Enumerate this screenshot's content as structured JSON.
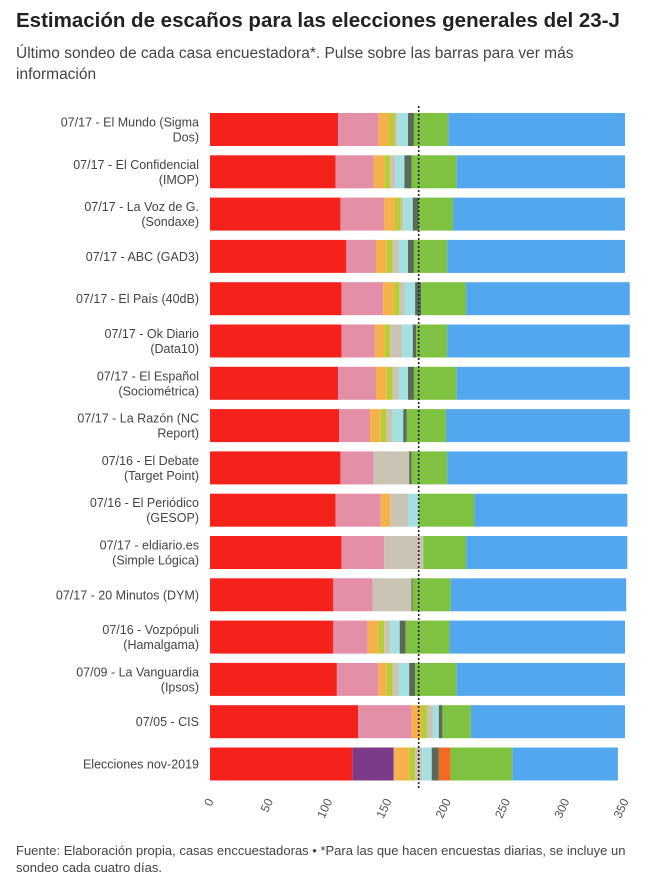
{
  "title": "Estimación de escaños para las elecciones generales del 23-J",
  "subtitle": "Último sondeo de cada casa encuestadora*. Pulse sobre las barras para ver más información",
  "footer": "Fuente: Elaboración propia, casas enccuestadoras • *Para las que hacen encuestas diarias, se incluye un sondeo cada cuatro días.",
  "colors": {
    "psoe": "#f5221c",
    "sumar": "#e38fa8",
    "up": "#7c3b86",
    "erc": "#f5b24a",
    "bildu": "#b8cc34",
    "pnv": "#c9c4b4",
    "junts": "#a4e0e2",
    "bng": "#6bb6de",
    "otros_small": "#5a6a58",
    "cs": "#f26a24",
    "vox": "#7fc241",
    "pp": "#53a7ef",
    "reference_line": "#222222"
  },
  "chart_data": {
    "type": "bar",
    "orientation": "horizontal",
    "stacked": true,
    "title": "Estimación de escaños para las elecciones generales del 23-J",
    "xlim": [
      0,
      350
    ],
    "xticks": [
      "0",
      "50",
      "100",
      "150",
      "200",
      "250",
      "300",
      "350"
    ],
    "majority_line": 176,
    "categories": [
      "07/17 - El Mundo (Sigma Dos)",
      "07/17 - El Confidencial (IMOP)",
      "07/17 - La Voz de G. (Sondaxe)",
      "07/17 - ABC (GAD3)",
      "07/17 - El País (40dB)",
      "07/17 - Ok Diario (Data10)",
      "07/17 - El Español (Sociométrica)",
      "07/17 - La Razón (NC Report)",
      "07/16 - El Debate (Target Point)",
      "07/16 - El Periódico (GESOP)",
      "07/17 - eldiario.es (Simple Lógica)",
      "07/17 - 20 Minutos (DYM)",
      "07/16 - Vozpópuli (Hamalgama)",
      "07/09 - La Vanguardia (Ipsos)",
      "07/05 - CIS",
      "Elecciones nov-2019"
    ],
    "rows": [
      [
        {
          "c": "psoe",
          "v": 108
        },
        {
          "c": "sumar",
          "v": 34
        },
        {
          "c": "erc",
          "v": 9
        },
        {
          "c": "bildu",
          "v": 5
        },
        {
          "c": "pnv",
          "v": 2
        },
        {
          "c": "junts",
          "v": 9
        },
        {
          "c": "otros_small",
          "v": 5
        },
        {
          "c": "vox",
          "v": 29
        },
        {
          "c": "pp",
          "v": 149
        }
      ],
      [
        {
          "c": "psoe",
          "v": 106
        },
        {
          "c": "sumar",
          "v": 32
        },
        {
          "c": "erc",
          "v": 9
        },
        {
          "c": "bildu",
          "v": 5
        },
        {
          "c": "pnv",
          "v": 4
        },
        {
          "c": "junts",
          "v": 8
        },
        {
          "c": "otros_small",
          "v": 6
        },
        {
          "c": "vox",
          "v": 38
        },
        {
          "c": "pp",
          "v": 142
        }
      ],
      [
        {
          "c": "psoe",
          "v": 110
        },
        {
          "c": "sumar",
          "v": 37
        },
        {
          "c": "erc",
          "v": 9
        },
        {
          "c": "bildu",
          "v": 5
        },
        {
          "c": "pnv",
          "v": 2
        },
        {
          "c": "junts",
          "v": 8
        },
        {
          "c": "otros_small",
          "v": 5
        },
        {
          "c": "vox",
          "v": 29
        },
        {
          "c": "pp",
          "v": 145
        }
      ],
      [
        {
          "c": "psoe",
          "v": 115
        },
        {
          "c": "sumar",
          "v": 25
        },
        {
          "c": "erc",
          "v": 9
        },
        {
          "c": "bildu",
          "v": 5
        },
        {
          "c": "pnv",
          "v": 5
        },
        {
          "c": "junts",
          "v": 8
        },
        {
          "c": "otros_small",
          "v": 5
        },
        {
          "c": "vox",
          "v": 28
        },
        {
          "c": "pp",
          "v": 150
        }
      ],
      [
        {
          "c": "psoe",
          "v": 111
        },
        {
          "c": "sumar",
          "v": 35
        },
        {
          "c": "erc",
          "v": 9
        },
        {
          "c": "bildu",
          "v": 5
        },
        {
          "c": "pnv",
          "v": 4
        },
        {
          "c": "junts",
          "v": 9
        },
        {
          "c": "otros_small",
          "v": 5
        },
        {
          "c": "vox",
          "v": 38
        },
        {
          "c": "pp",
          "v": 138
        }
      ],
      [
        {
          "c": "psoe",
          "v": 111
        },
        {
          "c": "sumar",
          "v": 28
        },
        {
          "c": "erc",
          "v": 8
        },
        {
          "c": "bildu",
          "v": 5
        },
        {
          "c": "pnv",
          "v": 10
        },
        {
          "c": "junts",
          "v": 9
        },
        {
          "c": "otros_small",
          "v": 3
        },
        {
          "c": "vox",
          "v": 26
        },
        {
          "c": "pp",
          "v": 154
        }
      ],
      [
        {
          "c": "psoe",
          "v": 108
        },
        {
          "c": "sumar",
          "v": 32
        },
        {
          "c": "erc",
          "v": 9
        },
        {
          "c": "bildu",
          "v": 5
        },
        {
          "c": "pnv",
          "v": 5
        },
        {
          "c": "junts",
          "v": 8
        },
        {
          "c": "otros_small",
          "v": 5
        },
        {
          "c": "vox",
          "v": 36
        },
        {
          "c": "pp",
          "v": 146
        }
      ],
      [
        {
          "c": "psoe",
          "v": 109
        },
        {
          "c": "sumar",
          "v": 26
        },
        {
          "c": "erc",
          "v": 9
        },
        {
          "c": "bildu",
          "v": 5
        },
        {
          "c": "pnv",
          "v": 5
        },
        {
          "c": "junts",
          "v": 9
        },
        {
          "c": "otros_small",
          "v": 3
        },
        {
          "c": "vox",
          "v": 33
        },
        {
          "c": "pp",
          "v": 155
        }
      ],
      [
        {
          "c": "psoe",
          "v": 110
        },
        {
          "c": "sumar",
          "v": 28
        },
        {
          "c": "pnv",
          "v": 30
        },
        {
          "c": "otros_small",
          "v": 2
        },
        {
          "c": "vox",
          "v": 30
        },
        {
          "c": "pp",
          "v": 152
        }
      ],
      [
        {
          "c": "psoe",
          "v": 106
        },
        {
          "c": "sumar",
          "v": 38
        },
        {
          "c": "erc",
          "v": 8
        },
        {
          "c": "pnv",
          "v": 15
        },
        {
          "c": "junts",
          "v": 9
        },
        {
          "c": "vox",
          "v": 47
        },
        {
          "c": "pp",
          "v": 129
        }
      ],
      [
        {
          "c": "psoe",
          "v": 111
        },
        {
          "c": "sumar",
          "v": 36
        },
        {
          "c": "pnv",
          "v": 33
        },
        {
          "c": "vox",
          "v": 36
        },
        {
          "c": "pp",
          "v": 136
        }
      ],
      [
        {
          "c": "psoe",
          "v": 104
        },
        {
          "c": "sumar",
          "v": 33
        },
        {
          "c": "pnv",
          "v": 33
        },
        {
          "c": "otros_small",
          "v": 1
        },
        {
          "c": "vox",
          "v": 32
        },
        {
          "c": "pp",
          "v": 148
        }
      ],
      [
        {
          "c": "psoe",
          "v": 104
        },
        {
          "c": "sumar",
          "v": 29
        },
        {
          "c": "erc",
          "v": 9
        },
        {
          "c": "bildu",
          "v": 5
        },
        {
          "c": "pnv",
          "v": 5
        },
        {
          "c": "junts",
          "v": 8
        },
        {
          "c": "otros_small",
          "v": 5
        },
        {
          "c": "vox",
          "v": 37
        },
        {
          "c": "pp",
          "v": 148
        }
      ],
      [
        {
          "c": "psoe",
          "v": 107
        },
        {
          "c": "sumar",
          "v": 35
        },
        {
          "c": "erc",
          "v": 7
        },
        {
          "c": "bildu",
          "v": 5
        },
        {
          "c": "pnv",
          "v": 5
        },
        {
          "c": "junts",
          "v": 9
        },
        {
          "c": "otros_small",
          "v": 5
        },
        {
          "c": "vox",
          "v": 35
        },
        {
          "c": "pp",
          "v": 142
        }
      ],
      [
        {
          "c": "psoe",
          "v": 125
        },
        {
          "c": "sumar",
          "v": 45
        },
        {
          "c": "erc",
          "v": 8
        },
        {
          "c": "bildu",
          "v": 5
        },
        {
          "c": "pnv",
          "v": 5
        },
        {
          "c": "junts",
          "v": 5
        },
        {
          "c": "otros_small",
          "v": 3
        },
        {
          "c": "vox",
          "v": 24
        },
        {
          "c": "pp",
          "v": 130
        }
      ],
      [
        {
          "c": "psoe",
          "v": 120
        },
        {
          "c": "up",
          "v": 35
        },
        {
          "c": "erc",
          "v": 13
        },
        {
          "c": "bildu",
          "v": 5
        },
        {
          "c": "pnv",
          "v": 6
        },
        {
          "c": "junts",
          "v": 8
        },
        {
          "c": "otros_small",
          "v": 6
        },
        {
          "c": "cs",
          "v": 10
        },
        {
          "c": "vox",
          "v": 52
        },
        {
          "c": "pp",
          "v": 89
        }
      ]
    ]
  }
}
